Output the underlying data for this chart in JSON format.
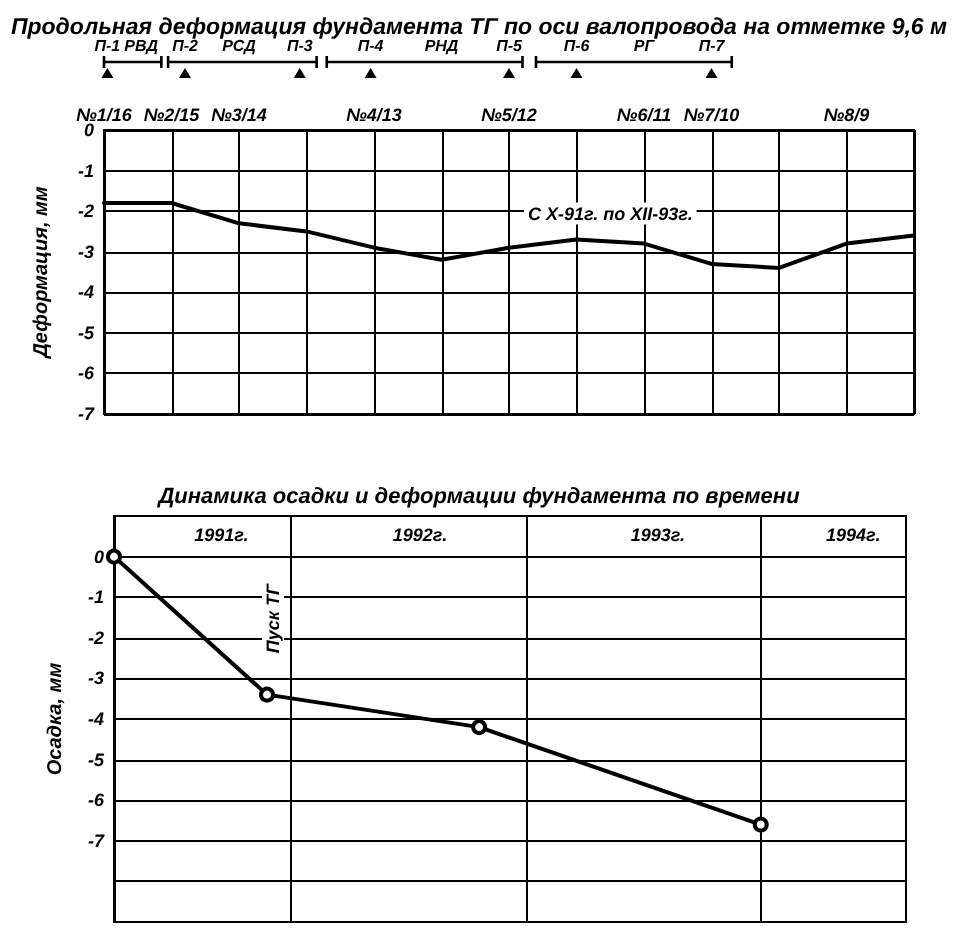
{
  "chart_data": [
    {
      "type": "line",
      "title": "Продольная деформация фундамента ТГ по оси валопровода на отметке 9,6 м",
      "ylabel": "Деформация, мм",
      "categories": [
        "№1/16",
        "№2/15",
        "№3/14",
        null,
        "№4/13",
        null,
        "№5/12",
        null,
        "№6/11",
        "№7/10",
        null,
        "№8/9",
        null
      ],
      "series": [
        {
          "name": "С X-91г. по XII-93г.",
          "color": "#000000",
          "values": [
            -1.8,
            -1.8,
            -2.3,
            -2.5,
            -2.9,
            -3.2,
            -2.9,
            -2.7,
            -2.8,
            -3.3,
            -3.4,
            -2.8,
            -2.6
          ]
        }
      ],
      "ylim": [
        -7,
        0
      ],
      "yticks": [
        0,
        -1,
        -2,
        -3,
        -4,
        -5,
        -6,
        -7
      ],
      "grid": true,
      "annotations": [
        "П-1",
        "РВД",
        "П-2",
        "РСД",
        "П-3",
        "П-4",
        "РНД",
        "П-5",
        "П-6",
        "РГ",
        "П-7"
      ]
    },
    {
      "type": "line",
      "title": "Динамика осадки и деформации фундамента по времени",
      "ylabel": "Осадка, мм",
      "x": [
        "1991-04-01",
        "1991-11-25",
        "1992-10-20",
        "1994-01-01"
      ],
      "values": [
        0,
        -3.4,
        -4.2,
        -6.6
      ],
      "color": "#000000",
      "marker": "circle",
      "xlim": [
        "1991-04-01",
        "1994-08-15"
      ],
      "xticks": [
        {
          "value": "1991-09-15",
          "label": "1991г."
        },
        {
          "value": "1992-07-20",
          "label": "1992г."
        },
        {
          "value": "1993-07-25",
          "label": "1993г."
        },
        {
          "value": "1994-05-25",
          "label": "1994г."
        }
      ],
      "ylim": [
        -9,
        1
      ],
      "yticks": [
        0,
        -1,
        -2,
        -3,
        -4,
        -5,
        -6,
        -7,
        {
          "value": -8,
          "label": null
        }
      ],
      "grid": "y",
      "ref_lines": [
        {
          "axis": "x",
          "value": "1992-01-01",
          "color": "#000000"
        },
        {
          "axis": "x",
          "value": "1993-01-01",
          "color": "#000000"
        },
        {
          "axis": "x",
          "value": "1994-01-01",
          "color": "#000000"
        }
      ],
      "annotations": [
        {
          "text": "Пуск ТГ",
          "x": "1991-11-25",
          "y": -3.4
        }
      ]
    }
  ]
}
